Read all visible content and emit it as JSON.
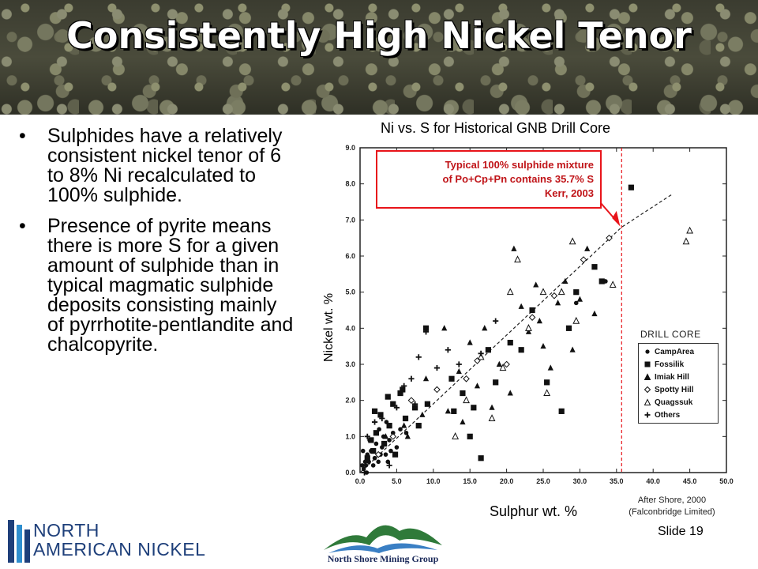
{
  "slide": {
    "title": "Consistently High Nickel Tenor",
    "bullets": [
      "Sulphides have a relatively consistent nickel tenor of 6 to 8% Ni recalculated to 100% sulphide.",
      "Presence of pyrite means there is more S for a given amount of sulphide than in typical magmatic sulphide deposits consisting mainly of pyrrhotite-pentlandite and chalcopyrite."
    ],
    "bullet_glyph": "•",
    "slide_number": "Slide 19",
    "credit_line1": "After Shore, 2000",
    "credit_line2": "(Falconbridge Limited)",
    "logo_left_line1": "NORTH",
    "logo_left_line2": "AMERICAN NICKEL",
    "logo_right": "North Shore Mining Group",
    "colors": {
      "annotation_red": "#e8141a",
      "title_text": "#ffffff",
      "logo_blue": "#1e3f7a"
    }
  },
  "annotation": {
    "line1": "Typical 100% sulphide mixture",
    "line2": "of Po+Cp+Pn contains 35.7% S",
    "line3": "Kerr, 2003"
  },
  "chart_data": {
    "type": "scatter",
    "title": "Ni vs. S for Historical GNB Drill Core",
    "xlabel": "Sulphur wt. %",
    "ylabel": "Nickel wt. %",
    "xlim": [
      0,
      50
    ],
    "ylim": [
      0,
      9
    ],
    "x_ticks": [
      "0.0",
      "5.0",
      "10.0",
      "15.0",
      "20.0",
      "25.0",
      "30.0",
      "35.0",
      "40.0",
      "45.0",
      "50.0"
    ],
    "y_ticks": [
      "0.0",
      "1.0",
      "2.0",
      "3.0",
      "4.0",
      "5.0",
      "6.0",
      "7.0",
      "8.0",
      "9.0"
    ],
    "legend_title": "DRILL CORE",
    "legend_placement": "bottom-right",
    "reference_line": {
      "x": 35.7,
      "label": "Typical 100% sulphide mixture of Po+Cp+Pn contains 35.7% S"
    },
    "trend_line": [
      [
        0,
        0
      ],
      [
        35.7,
        6.8
      ],
      [
        42.5,
        7.7
      ]
    ],
    "series": [
      {
        "name": "CampArea",
        "marker": "circle",
        "points": [
          [
            0.5,
            0.1
          ],
          [
            0.8,
            0.2
          ],
          [
            1.2,
            0.3
          ],
          [
            1.0,
            0.5
          ],
          [
            1.5,
            0.6
          ],
          [
            2.0,
            0.4
          ],
          [
            2.2,
            0.8
          ],
          [
            2.5,
            0.3
          ],
          [
            3.0,
            0.7
          ],
          [
            3.2,
            1.0
          ],
          [
            3.5,
            0.5
          ],
          [
            4.0,
            0.9
          ],
          [
            4.2,
            0.6
          ],
          [
            0.4,
            0.6
          ],
          [
            0.7,
            0.3
          ],
          [
            1.8,
            0.2
          ],
          [
            2.8,
            0.5
          ],
          [
            3.8,
            0.3
          ],
          [
            4.5,
            1.1
          ],
          [
            5.0,
            0.7
          ],
          [
            5.5,
            1.2
          ],
          [
            1.3,
            0.9
          ],
          [
            2.6,
            1.2
          ],
          [
            0.9,
            0.0
          ],
          [
            0.3,
            0.2
          ],
          [
            33.5,
            5.3
          ],
          [
            29.5,
            4.7
          ],
          [
            6.3,
            1.1
          ],
          [
            3.6,
            1.4
          ]
        ]
      },
      {
        "name": "Fossilik",
        "marker": "square",
        "points": [
          [
            1.0,
            0.4
          ],
          [
            1.5,
            0.9
          ],
          [
            2.2,
            1.1
          ],
          [
            2.8,
            1.6
          ],
          [
            3.3,
            0.8
          ],
          [
            4.0,
            1.3
          ],
          [
            4.5,
            1.9
          ],
          [
            5.5,
            2.2
          ],
          [
            6.2,
            1.5
          ],
          [
            7.5,
            1.8
          ],
          [
            8.0,
            1.3
          ],
          [
            9.0,
            4.0
          ],
          [
            9.2,
            1.9
          ],
          [
            12.5,
            2.6
          ],
          [
            12.8,
            1.7
          ],
          [
            14.0,
            2.2
          ],
          [
            15.0,
            1.0
          ],
          [
            15.5,
            1.8
          ],
          [
            16.5,
            0.4
          ],
          [
            17.5,
            3.4
          ],
          [
            18.5,
            2.5
          ],
          [
            20.5,
            3.6
          ],
          [
            22.0,
            3.4
          ],
          [
            23.5,
            4.5
          ],
          [
            25.5,
            2.5
          ],
          [
            27.5,
            1.7
          ],
          [
            28.5,
            4.0
          ],
          [
            29.5,
            5.0
          ],
          [
            32.0,
            5.7
          ],
          [
            33.0,
            5.3
          ],
          [
            37.0,
            7.9
          ],
          [
            2.0,
            1.7
          ],
          [
            3.8,
            2.1
          ],
          [
            5.8,
            2.3
          ],
          [
            1.8,
            0.6
          ],
          [
            4.8,
            0.5
          ]
        ]
      },
      {
        "name": "Imiak Hill",
        "marker": "triangle",
        "points": [
          [
            3.5,
            1.0
          ],
          [
            6.0,
            1.3
          ],
          [
            8.5,
            1.6
          ],
          [
            9.0,
            2.6
          ],
          [
            12.0,
            1.7
          ],
          [
            13.5,
            2.8
          ],
          [
            15.0,
            3.6
          ],
          [
            16.0,
            2.4
          ],
          [
            17.0,
            4.0
          ],
          [
            18.0,
            1.8
          ],
          [
            19.0,
            3.0
          ],
          [
            20.5,
            2.2
          ],
          [
            21.0,
            6.2
          ],
          [
            22.0,
            4.6
          ],
          [
            23.0,
            3.9
          ],
          [
            24.0,
            5.2
          ],
          [
            24.5,
            4.2
          ],
          [
            25.0,
            3.5
          ],
          [
            26.0,
            2.9
          ],
          [
            27.0,
            4.7
          ],
          [
            28.0,
            5.3
          ],
          [
            29.0,
            3.4
          ],
          [
            30.0,
            4.8
          ],
          [
            31.0,
            6.2
          ],
          [
            32.0,
            4.4
          ],
          [
            11.5,
            4.0
          ],
          [
            14.0,
            1.4
          ],
          [
            6.5,
            1.0
          ]
        ]
      },
      {
        "name": "Spotty Hill",
        "marker": "diamond",
        "points": [
          [
            2.5,
            0.5
          ],
          [
            4.5,
            1.0
          ],
          [
            7.0,
            2.0
          ],
          [
            10.5,
            2.3
          ],
          [
            14.5,
            2.6
          ],
          [
            16.0,
            3.1
          ],
          [
            20.0,
            3.0
          ],
          [
            23.5,
            4.3
          ],
          [
            26.5,
            4.9
          ],
          [
            30.5,
            5.9
          ],
          [
            34.0,
            6.5
          ]
        ]
      },
      {
        "name": "Quagssuk",
        "marker": "triangle-open",
        "points": [
          [
            13.0,
            1.0
          ],
          [
            14.5,
            2.0
          ],
          [
            16.5,
            3.2
          ],
          [
            19.5,
            2.9
          ],
          [
            20.5,
            5.0
          ],
          [
            21.5,
            5.9
          ],
          [
            23.0,
            4.0
          ],
          [
            25.5,
            2.2
          ],
          [
            27.5,
            5.0
          ],
          [
            29.5,
            4.2
          ],
          [
            29.0,
            6.4
          ],
          [
            34.5,
            5.2
          ],
          [
            44.5,
            6.4
          ],
          [
            45.0,
            6.7
          ],
          [
            18.0,
            1.5
          ],
          [
            25.0,
            5.0
          ]
        ]
      },
      {
        "name": "Others",
        "marker": "plus",
        "points": [
          [
            1.0,
            1.0
          ],
          [
            2.0,
            1.4
          ],
          [
            3.0,
            1.5
          ],
          [
            5.0,
            1.8
          ],
          [
            6.0,
            2.4
          ],
          [
            7.0,
            2.6
          ],
          [
            7.5,
            1.9
          ],
          [
            8.0,
            3.2
          ],
          [
            9.0,
            3.9
          ],
          [
            10.5,
            2.9
          ],
          [
            12.0,
            3.4
          ],
          [
            13.5,
            3.0
          ],
          [
            16.5,
            3.3
          ],
          [
            18.5,
            4.2
          ],
          [
            4.0,
            0.2
          ],
          [
            0.6,
            0.0
          ]
        ]
      }
    ]
  }
}
